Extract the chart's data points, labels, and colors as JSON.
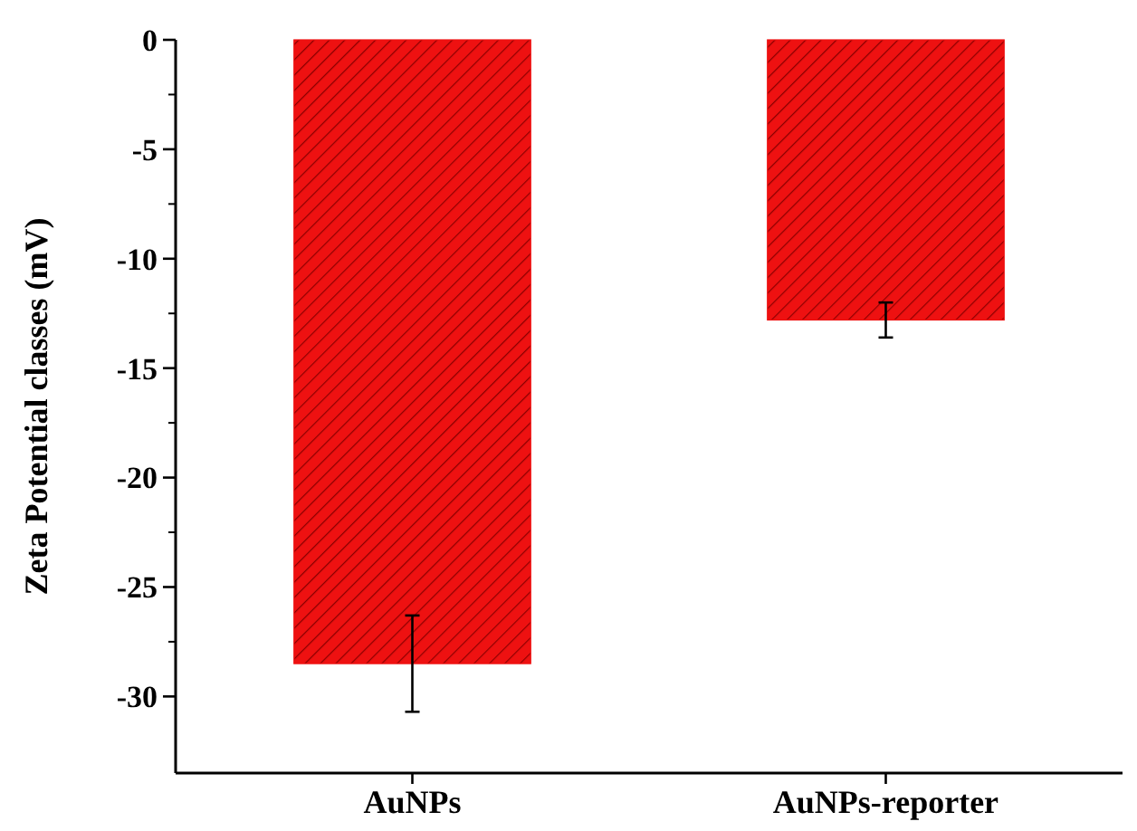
{
  "chart_data": {
    "type": "bar",
    "ylabel": "Zeta Potential classes (mV)",
    "categories": [
      "AuNPs",
      "AuNPs-reporter"
    ],
    "values": [
      -28.5,
      -12.8
    ],
    "errors": [
      2.2,
      0.8
    ],
    "color": "#ee1111",
    "ylim": [
      -33.5,
      0
    ],
    "yticks": [
      0,
      -5,
      -10,
      -15,
      -20,
      -25,
      -30
    ],
    "grid": false
  }
}
